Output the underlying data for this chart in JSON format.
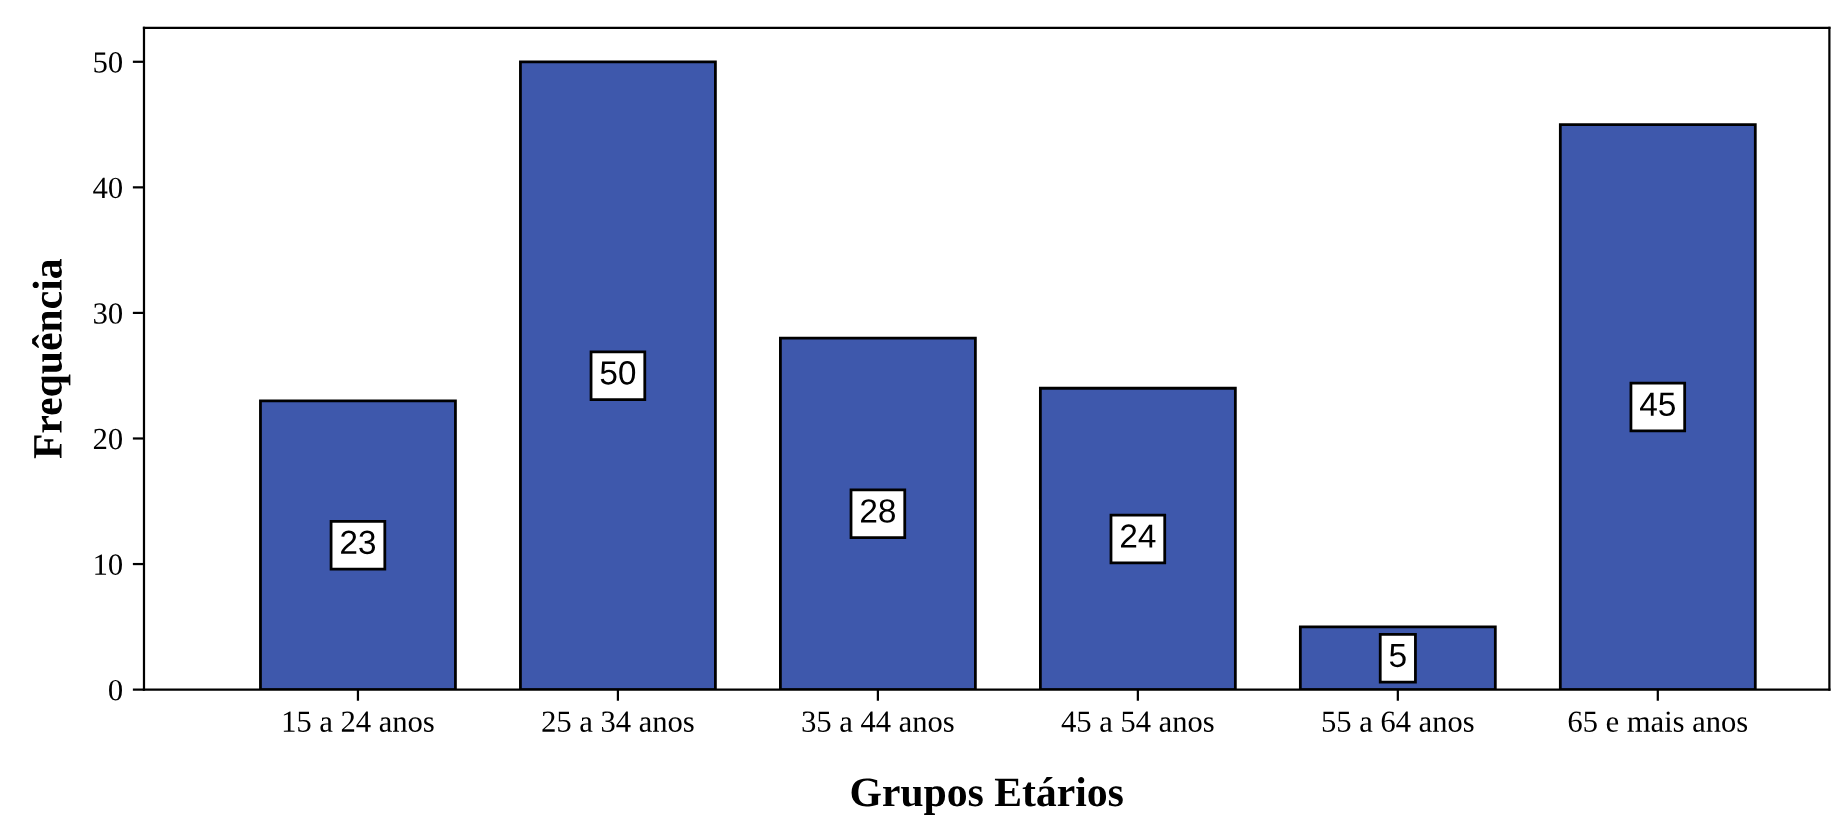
{
  "chart_data": {
    "type": "bar",
    "xlabel": "Grupos Etários",
    "ylabel": "Frequência",
    "categories": [
      "15 a 24 anos",
      "25 a 34 anos",
      "35 a 44 anos",
      "45 a 54 anos",
      "55 a 64 anos",
      "65 e mais anos"
    ],
    "values": [
      23,
      50,
      28,
      24,
      5,
      45
    ],
    "color": "#3e58ac",
    "ylim": [
      0,
      52.7
    ],
    "yticks": [
      0,
      10,
      20,
      30,
      40,
      50
    ],
    "grid": false,
    "legend": false,
    "data_labels": true
  }
}
